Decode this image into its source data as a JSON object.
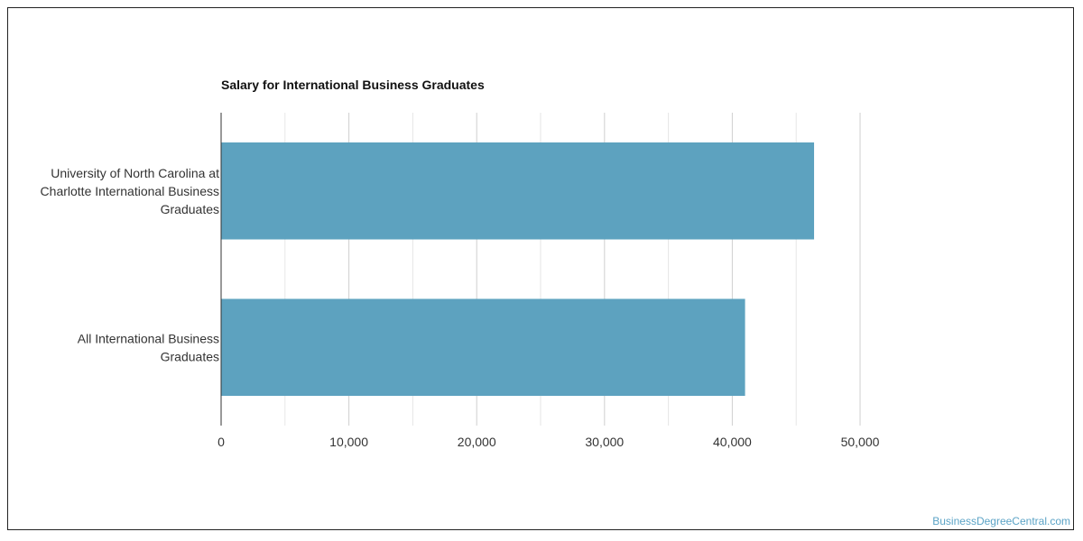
{
  "chart_data": {
    "type": "bar",
    "orientation": "horizontal",
    "title": "Salary for International Business Graduates",
    "categories": [
      [
        "University of North Carolina at",
        "Charlotte International Business",
        "Graduates"
      ],
      [
        "All International Business",
        "Graduates"
      ]
    ],
    "values": [
      46400,
      41000
    ],
    "xlim": [
      0,
      50000
    ],
    "xticks": [
      0,
      10000,
      20000,
      30000,
      40000,
      50000
    ],
    "xtick_labels": [
      "0",
      "10,000",
      "20,000",
      "30,000",
      "40,000",
      "50,000"
    ],
    "grid": true,
    "bar_color": "#5da2bf",
    "xlabel": "",
    "ylabel": ""
  },
  "watermark": "BusinessDegreeCentral.com"
}
